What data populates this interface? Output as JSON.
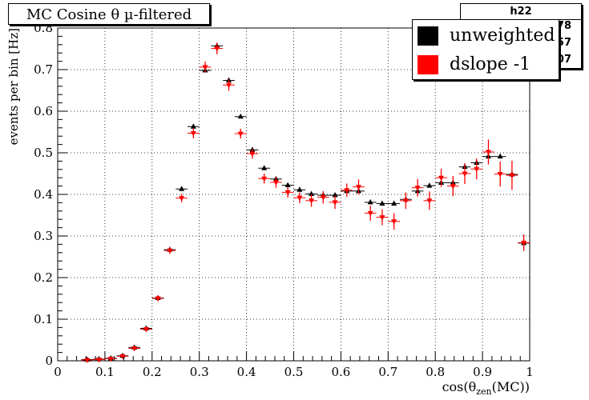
{
  "chart_data": {
    "type": "scatter",
    "title": "MC Cosine θ µ-filtered",
    "xlabel": "cos(θzen(MC))",
    "xlabel_main": "cos(θ",
    "xlabel_sub": "zen",
    "xlabel_end": "(MC))",
    "ylabel": "events per bin [Hz]",
    "xlim": [
      0,
      1
    ],
    "ylim": [
      0,
      0.8
    ],
    "x_ticks": [
      "0",
      "0.1",
      "0.2",
      "0.3",
      "0.4",
      "0.5",
      "0.6",
      "0.7",
      "0.8",
      "0.9",
      "1"
    ],
    "y_ticks": [
      "0",
      "0.1",
      "0.2",
      "0.3",
      "0.4",
      "0.5",
      "0.6",
      "0.7",
      "0.8"
    ],
    "grid": true,
    "legend_position": "top-right",
    "stats_box": {
      "name": "h22",
      "values": [
        "78",
        "57",
        "07"
      ]
    },
    "series": [
      {
        "name": "unweighted",
        "color": "#000000",
        "marker": "triangle-up",
        "x": [
          0.0625,
          0.0875,
          0.1125,
          0.1375,
          0.1625,
          0.1875,
          0.2125,
          0.2375,
          0.2625,
          0.2875,
          0.3125,
          0.3375,
          0.3625,
          0.3875,
          0.4125,
          0.4375,
          0.4625,
          0.4875,
          0.5125,
          0.5375,
          0.5625,
          0.5875,
          0.6125,
          0.6375,
          0.6625,
          0.6875,
          0.7125,
          0.7375,
          0.7625,
          0.7875,
          0.8125,
          0.8375,
          0.8625,
          0.8875,
          0.9125,
          0.9375,
          0.9625,
          0.9875
        ],
        "y": [
          0.003,
          0.004,
          0.006,
          0.012,
          0.032,
          0.078,
          0.151,
          0.267,
          0.413,
          0.563,
          0.698,
          0.757,
          0.674,
          0.587,
          0.507,
          0.463,
          0.437,
          0.422,
          0.411,
          0.401,
          0.398,
          0.398,
          0.408,
          0.408,
          0.381,
          0.378,
          0.378,
          0.388,
          0.408,
          0.421,
          0.428,
          0.428,
          0.466,
          0.476,
          0.491,
          0.491,
          0.448,
          0.283
        ]
      },
      {
        "name": "dslope -1",
        "color": "#ff0000",
        "marker": "triangle-down",
        "x": [
          0.0625,
          0.0875,
          0.1125,
          0.1375,
          0.1625,
          0.1875,
          0.2125,
          0.2375,
          0.2625,
          0.2875,
          0.3125,
          0.3375,
          0.3625,
          0.3875,
          0.4125,
          0.4375,
          0.4625,
          0.4875,
          0.5125,
          0.5375,
          0.5625,
          0.5875,
          0.6125,
          0.6375,
          0.6625,
          0.6875,
          0.7125,
          0.7375,
          0.7625,
          0.7875,
          0.8125,
          0.8375,
          0.8625,
          0.8875,
          0.9125,
          0.9375,
          0.9625,
          0.9875
        ],
        "y": [
          0.002,
          0.003,
          0.005,
          0.011,
          0.03,
          0.076,
          0.15,
          0.265,
          0.391,
          0.547,
          0.706,
          0.751,
          0.663,
          0.546,
          0.498,
          0.438,
          0.429,
          0.405,
          0.392,
          0.385,
          0.393,
          0.381,
          0.41,
          0.418,
          0.355,
          0.345,
          0.335,
          0.385,
          0.416,
          0.385,
          0.44,
          0.42,
          0.45,
          0.461,
          0.502,
          0.449,
          0.446,
          0.284
        ],
        "err": [
          0.002,
          0.002,
          0.003,
          0.004,
          0.005,
          0.006,
          0.007,
          0.008,
          0.01,
          0.012,
          0.013,
          0.014,
          0.014,
          0.012,
          0.012,
          0.012,
          0.013,
          0.013,
          0.013,
          0.015,
          0.015,
          0.016,
          0.016,
          0.018,
          0.018,
          0.019,
          0.02,
          0.02,
          0.021,
          0.022,
          0.022,
          0.024,
          0.025,
          0.025,
          0.03,
          0.03,
          0.035,
          0.02
        ]
      }
    ]
  }
}
